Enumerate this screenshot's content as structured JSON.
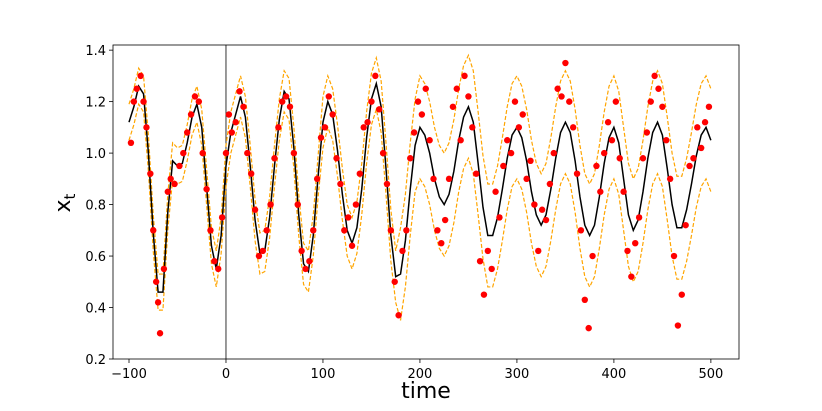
{
  "chart_data": {
    "type": "line_scatter",
    "xlabel": "time",
    "ylabel": "x",
    "ylabel_subscript": "t",
    "xlim": [
      -116.5,
      529
    ],
    "ylim": [
      0.2,
      1.42
    ],
    "xticks": [
      {
        "value": -100,
        "label": "−100"
      },
      0,
      100,
      200,
      300,
      400,
      500
    ],
    "yticks": [
      0.2,
      0.4,
      0.6,
      0.8,
      {
        "value": 1,
        "label": "1.0"
      },
      1.2,
      1.4
    ],
    "vline": 0,
    "x": [
      -100,
      -95,
      -90,
      -85,
      -80,
      -75,
      -70,
      -65,
      -60,
      -55,
      -50,
      -45,
      -40,
      -35,
      -30,
      -25,
      -20,
      -15,
      -10,
      -5,
      0,
      5,
      10,
      15,
      20,
      25,
      30,
      35,
      40,
      45,
      50,
      55,
      60,
      65,
      70,
      75,
      80,
      85,
      90,
      95,
      100,
      105,
      110,
      115,
      120,
      125,
      130,
      135,
      140,
      145,
      150,
      155,
      160,
      165,
      170,
      175,
      180,
      185,
      190,
      195,
      200,
      205,
      210,
      215,
      220,
      225,
      230,
      235,
      240,
      245,
      250,
      255,
      260,
      265,
      270,
      275,
      280,
      285,
      290,
      295,
      300,
      305,
      310,
      315,
      320,
      325,
      330,
      335,
      340,
      345,
      350,
      355,
      360,
      365,
      370,
      375,
      380,
      385,
      390,
      395,
      400,
      405,
      410,
      415,
      420,
      425,
      430,
      435,
      440,
      445,
      450,
      455,
      460,
      465,
      470,
      475,
      480,
      485,
      490,
      495,
      500
    ],
    "series": [
      {
        "color": "#ffa500",
        "dashed": true,
        "values": [
          1.19,
          1.25,
          1.33,
          1.3,
          1.07,
          0.76,
          0.53,
          0.53,
          0.84,
          1.04,
          1.02,
          1.03,
          1.11,
          1.21,
          1.26,
          1.17,
          0.94,
          0.71,
          0.62,
          0.75,
          1.03,
          1.16,
          1.23,
          1.3,
          1.22,
          1.03,
          0.82,
          0.69,
          0.7,
          0.83,
          1.03,
          1.21,
          1.32,
          1.29,
          1.1,
          0.84,
          0.65,
          0.62,
          0.76,
          0.99,
          1.22,
          1.3,
          1.25,
          1.11,
          0.94,
          0.8,
          0.75,
          0.81,
          0.96,
          1.16,
          1.31,
          1.37,
          1.28,
          1.04,
          0.78,
          0.62,
          0.71,
          0.84,
          1.04,
          1.21,
          1.3,
          1.27,
          1.2,
          1.1,
          1.03,
          1.0,
          1.04,
          1.13,
          1.25,
          1.34,
          1.38,
          1.32,
          1.16,
          0.99,
          0.88,
          0.88,
          0.95,
          1.06,
          1.18,
          1.27,
          1.3,
          1.26,
          1.17,
          1.05,
          0.96,
          0.92,
          0.96,
          1.06,
          1.18,
          1.28,
          1.32,
          1.28,
          1.17,
          1.03,
          0.92,
          0.88,
          0.92,
          1.03,
          1.16,
          1.26,
          1.3,
          1.24,
          1.1,
          0.96,
          0.9,
          0.94,
          1.05,
          1.18,
          1.28,
          1.32,
          1.27,
          1.14,
          1.0,
          0.91,
          0.91,
          0.98,
          1.08,
          1.19,
          1.27,
          1.3,
          1.25
        ]
      },
      {
        "color": "#ffa500",
        "dashed": true,
        "values": [
          1.05,
          1.11,
          1.19,
          1.16,
          0.93,
          0.62,
          0.39,
          0.39,
          0.7,
          0.9,
          0.88,
          0.89,
          0.97,
          1.07,
          1.12,
          1.03,
          0.8,
          0.57,
          0.48,
          0.61,
          0.87,
          1.0,
          1.07,
          1.14,
          1.06,
          0.87,
          0.66,
          0.53,
          0.54,
          0.67,
          0.87,
          1.05,
          1.16,
          1.13,
          0.94,
          0.68,
          0.49,
          0.46,
          0.6,
          0.83,
          1.02,
          1.1,
          1.05,
          0.91,
          0.74,
          0.6,
          0.55,
          0.61,
          0.76,
          0.96,
          1.11,
          1.17,
          1.08,
          0.84,
          0.58,
          0.42,
          0.35,
          0.48,
          0.68,
          0.85,
          0.9,
          0.87,
          0.8,
          0.7,
          0.63,
          0.6,
          0.64,
          0.73,
          0.85,
          0.94,
          0.98,
          0.92,
          0.76,
          0.59,
          0.48,
          0.48,
          0.55,
          0.66,
          0.78,
          0.87,
          0.9,
          0.86,
          0.77,
          0.65,
          0.56,
          0.52,
          0.56,
          0.66,
          0.78,
          0.88,
          0.92,
          0.88,
          0.77,
          0.63,
          0.52,
          0.48,
          0.52,
          0.63,
          0.76,
          0.86,
          0.9,
          0.84,
          0.7,
          0.56,
          0.5,
          0.54,
          0.65,
          0.78,
          0.88,
          0.92,
          0.87,
          0.74,
          0.6,
          0.51,
          0.51,
          0.58,
          0.68,
          0.79,
          0.87,
          0.9,
          0.85
        ]
      },
      {
        "color": "#000000",
        "dashed": false,
        "values": [
          1.12,
          1.18,
          1.26,
          1.23,
          1.0,
          0.69,
          0.46,
          0.46,
          0.77,
          0.97,
          0.95,
          0.96,
          1.04,
          1.14,
          1.19,
          1.1,
          0.87,
          0.64,
          0.55,
          0.68,
          0.95,
          1.08,
          1.15,
          1.22,
          1.14,
          0.95,
          0.74,
          0.61,
          0.62,
          0.75,
          0.95,
          1.13,
          1.24,
          1.21,
          1.02,
          0.76,
          0.57,
          0.54,
          0.68,
          0.91,
          1.12,
          1.2,
          1.15,
          1.01,
          0.84,
          0.7,
          0.65,
          0.71,
          0.86,
          1.06,
          1.21,
          1.27,
          1.18,
          0.94,
          0.68,
          0.52,
          0.53,
          0.66,
          0.86,
          1.03,
          1.1,
          1.07,
          1.0,
          0.9,
          0.83,
          0.8,
          0.84,
          0.93,
          1.05,
          1.14,
          1.18,
          1.12,
          0.96,
          0.79,
          0.68,
          0.68,
          0.75,
          0.86,
          0.98,
          1.07,
          1.1,
          1.06,
          0.97,
          0.85,
          0.76,
          0.72,
          0.76,
          0.86,
          0.98,
          1.08,
          1.12,
          1.08,
          0.97,
          0.83,
          0.72,
          0.68,
          0.72,
          0.83,
          0.96,
          1.06,
          1.1,
          1.04,
          0.9,
          0.76,
          0.7,
          0.74,
          0.85,
          0.98,
          1.08,
          1.12,
          1.07,
          0.94,
          0.8,
          0.71,
          0.71,
          0.78,
          0.88,
          0.99,
          1.07,
          1.1,
          1.05
        ]
      }
    ],
    "points": {
      "color": "#ff0000",
      "x": [
        -98,
        -95,
        -92,
        -88,
        -85,
        -82,
        -78,
        -75,
        -72,
        -70,
        -68,
        -64,
        -60,
        -57,
        -53,
        -48,
        -44,
        -40,
        -36,
        -32,
        -28,
        -24,
        -20,
        -16,
        -12,
        -8,
        -4,
        0,
        3,
        6,
        10,
        14,
        18,
        22,
        26,
        30,
        34,
        38,
        42,
        46,
        50,
        54,
        58,
        62,
        66,
        70,
        74,
        78,
        82,
        86,
        90,
        94,
        98,
        102,
        106,
        110,
        114,
        118,
        122,
        126,
        130,
        134,
        138,
        142,
        146,
        150,
        154,
        158,
        162,
        166,
        170,
        174,
        178,
        182,
        186,
        190,
        194,
        198,
        202,
        206,
        210,
        214,
        218,
        222,
        226,
        230,
        234,
        238,
        242,
        246,
        250,
        254,
        258,
        262,
        266,
        270,
        274,
        278,
        282,
        286,
        290,
        294,
        298,
        302,
        306,
        310,
        314,
        318,
        322,
        326,
        330,
        334,
        338,
        342,
        346,
        350,
        354,
        358,
        362,
        366,
        370,
        374,
        378,
        382,
        386,
        390,
        394,
        398,
        402,
        406,
        410,
        414,
        418,
        422,
        426,
        430,
        434,
        438,
        442,
        446,
        450,
        454,
        458,
        462,
        466,
        470,
        474,
        478,
        482,
        486,
        490,
        494,
        498
      ],
      "values": [
        1.04,
        1.2,
        1.25,
        1.3,
        1.2,
        1.1,
        0.92,
        0.7,
        0.5,
        0.42,
        0.3,
        0.55,
        0.85,
        0.9,
        0.88,
        0.95,
        1.0,
        1.08,
        1.15,
        1.22,
        1.2,
        1.0,
        0.86,
        0.7,
        0.58,
        0.55,
        0.75,
        1.0,
        1.15,
        1.08,
        1.12,
        1.24,
        1.18,
        1.0,
        0.92,
        0.78,
        0.6,
        0.62,
        0.7,
        0.8,
        0.98,
        1.1,
        1.2,
        1.22,
        1.18,
        1.0,
        0.8,
        0.62,
        0.55,
        0.58,
        0.7,
        0.9,
        1.06,
        1.1,
        1.22,
        1.15,
        0.98,
        0.88,
        0.7,
        0.75,
        0.64,
        0.8,
        0.92,
        1.1,
        1.12,
        1.2,
        1.3,
        1.17,
        1.0,
        0.88,
        0.7,
        0.5,
        0.37,
        0.62,
        0.7,
        0.98,
        1.08,
        1.2,
        1.15,
        1.25,
        1.05,
        0.9,
        0.7,
        0.65,
        0.74,
        0.9,
        1.18,
        1.25,
        1.05,
        1.3,
        1.22,
        1.1,
        0.92,
        0.58,
        0.45,
        0.62,
        0.55,
        0.85,
        0.75,
        0.95,
        1.05,
        1.0,
        1.2,
        1.1,
        1.15,
        0.9,
        0.97,
        0.8,
        0.62,
        0.78,
        0.74,
        0.88,
        1.0,
        1.25,
        1.22,
        1.35,
        1.2,
        1.1,
        0.92,
        0.7,
        0.43,
        0.32,
        0.6,
        0.95,
        0.85,
        1.0,
        1.12,
        1.05,
        1.2,
        0.98,
        0.85,
        0.62,
        0.52,
        0.65,
        0.75,
        0.98,
        1.08,
        1.2,
        1.3,
        1.25,
        1.18,
        1.05,
        0.9,
        0.6,
        0.33,
        0.45,
        0.72,
        0.95,
        0.98,
        1.1,
        1.02,
        1.12,
        1.18
      ]
    }
  }
}
